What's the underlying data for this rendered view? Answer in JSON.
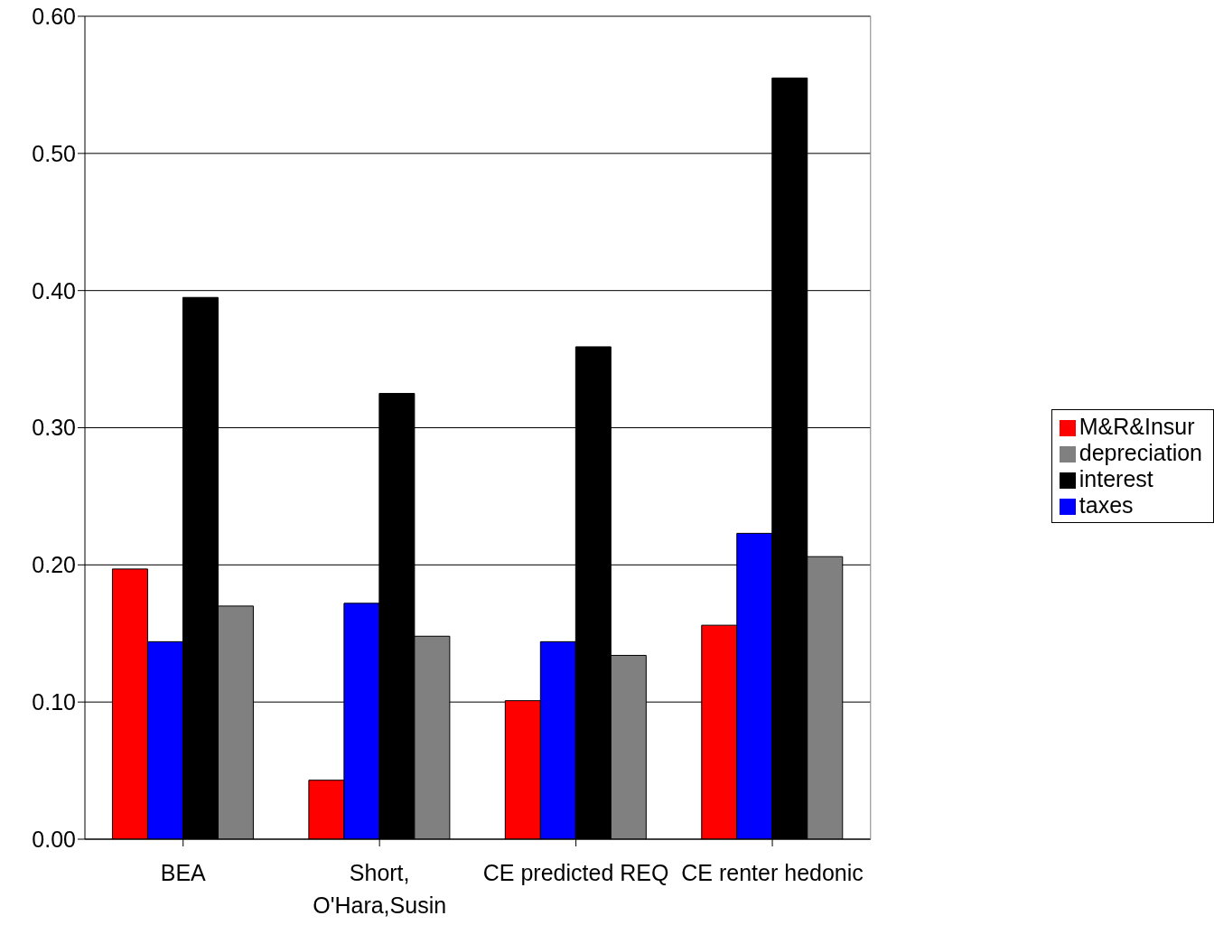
{
  "chart_data": {
    "type": "bar",
    "categories": [
      "BEA",
      "Short, O'Hara,Susin",
      "CE predicted REQ",
      "CE renter hedonic"
    ],
    "series": [
      {
        "name": "M&R&Insur",
        "color": "#ff0000",
        "values": [
          0.197,
          0.043,
          0.101,
          0.156
        ]
      },
      {
        "name": "taxes",
        "color": "#0000ff",
        "values": [
          0.144,
          0.172,
          0.144,
          0.223
        ]
      },
      {
        "name": "interest",
        "color": "#000000",
        "values": [
          0.395,
          0.325,
          0.359,
          0.555
        ]
      },
      {
        "name": "depreciation",
        "color": "#808080",
        "values": [
          0.17,
          0.148,
          0.134,
          0.206
        ]
      }
    ],
    "ylim": [
      0,
      0.6
    ],
    "yticks": [
      {
        "value": 0,
        "label": "0.00"
      },
      {
        "value": 0.1,
        "label": "0.10"
      },
      {
        "value": 0.2,
        "label": "0.20"
      },
      {
        "value": 0.3,
        "label": "0.30"
      },
      {
        "value": 0.4,
        "label": "0.40"
      },
      {
        "value": 0.5,
        "label": "0.50"
      },
      {
        "value": 0.6,
        "label": "0.60"
      }
    ],
    "grid": "y",
    "legend": "right"
  }
}
